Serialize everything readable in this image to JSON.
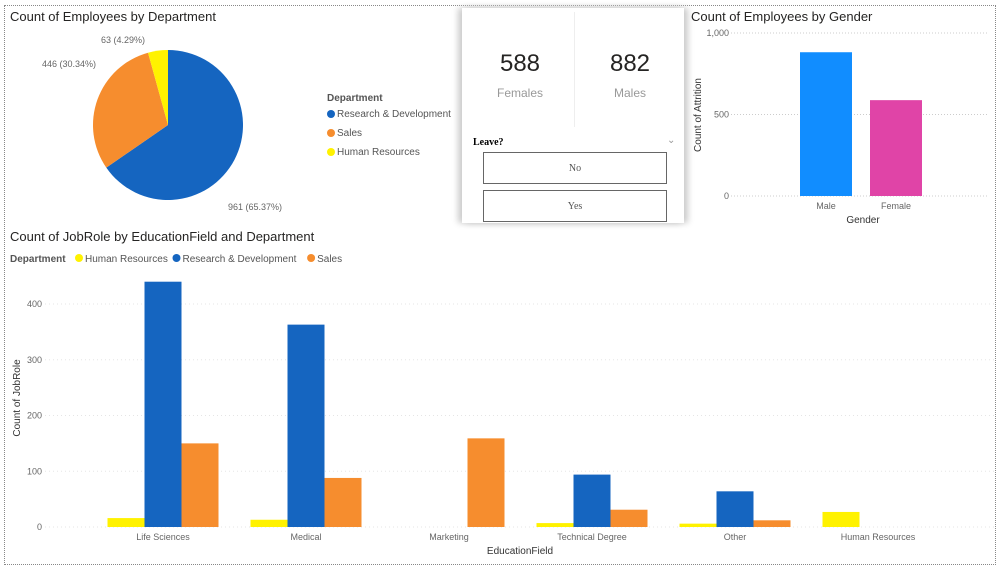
{
  "pie": {
    "title": "Count of Employees by Department",
    "legend_title": "Department",
    "chart_data": {
      "type": "pie",
      "title": "Count of Employees by Department",
      "slices": [
        {
          "name": "Research & Development",
          "value": 961,
          "label": "961 (65.37%)",
          "color": "#1565C0"
        },
        {
          "name": "Sales",
          "value": 446,
          "label": "446 (30.34%)",
          "color": "#F68D2E"
        },
        {
          "name": "Human Resources",
          "value": 63,
          "label": "63 (4.29%)",
          "color": "#FFF200"
        }
      ]
    }
  },
  "cards": [
    {
      "value": "588",
      "label": "Females"
    },
    {
      "value": "882",
      "label": "Males"
    }
  ],
  "slicer": {
    "title": "Leave?",
    "options": [
      "No",
      "Yes"
    ]
  },
  "gender": {
    "title": "Count of Employees by Gender",
    "chart_data": {
      "type": "bar",
      "title": "Count of Employees by Gender",
      "categories": [
        "Male",
        "Female"
      ],
      "values": [
        882,
        588
      ],
      "colors": [
        "#118DFF",
        "#E044A7"
      ],
      "xlabel": "Gender",
      "ylabel": "Count of Attrition",
      "ylim": [
        0,
        1000
      ],
      "yticks": [
        "0",
        "500",
        "1,000"
      ],
      "grid": true
    }
  },
  "jobrole": {
    "title": "Count of JobRole by EducationField and Department",
    "legend_title": "Department",
    "chart_data": {
      "type": "bar",
      "title": "Count of JobRole by EducationField and Department",
      "categories": [
        "Life Sciences",
        "Medical",
        "Marketing",
        "Technical Degree",
        "Other",
        "Human Resources"
      ],
      "series": [
        {
          "name": "Human Resources",
          "color": "#FFF200",
          "values": [
            16,
            13,
            0,
            7,
            6,
            27
          ]
        },
        {
          "name": "Research & Development",
          "color": "#1565C0",
          "values": [
            440,
            363,
            0,
            94,
            64,
            0
          ]
        },
        {
          "name": "Sales",
          "color": "#F68D2E",
          "values": [
            150,
            88,
            159,
            31,
            12,
            0
          ]
        }
      ],
      "xlabel": "EducationField",
      "ylabel": "Count of JobRole",
      "ylim": [
        0,
        450
      ],
      "yticks": [
        "0",
        "100",
        "200",
        "300",
        "400"
      ],
      "grid": true,
      "legend": "top-left"
    }
  }
}
